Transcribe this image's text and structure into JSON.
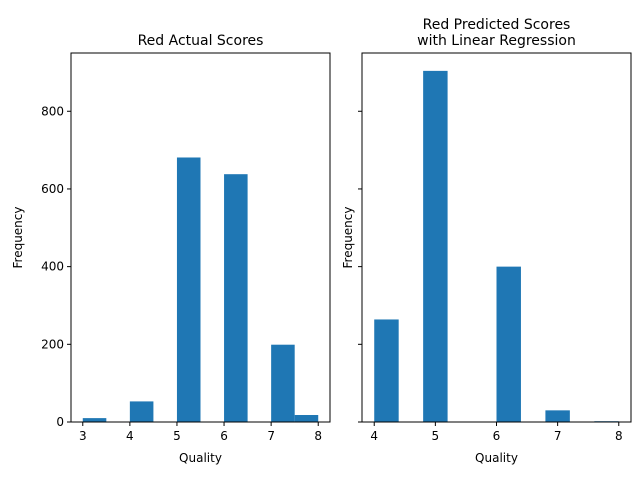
{
  "chart_data": [
    {
      "type": "bar",
      "title": "Red Actual Scores",
      "xlabel": "Quality",
      "ylabel": "Frequency",
      "xlim": [
        2.75,
        8.25
      ],
      "ylim": [
        0,
        950
      ],
      "xticks": [
        3,
        4,
        5,
        6,
        7,
        8
      ],
      "yticks": [
        0,
        200,
        400,
        600,
        800
      ],
      "show_ytick_labels": true,
      "color": "#1f77b4",
      "bins": [
        {
          "x0": 3.0,
          "x1": 3.5,
          "value": 10
        },
        {
          "x0": 3.5,
          "x1": 4.0,
          "value": 0
        },
        {
          "x0": 4.0,
          "x1": 4.5,
          "value": 53
        },
        {
          "x0": 4.5,
          "x1": 5.0,
          "value": 0
        },
        {
          "x0": 5.0,
          "x1": 5.5,
          "value": 681
        },
        {
          "x0": 5.5,
          "x1": 6.0,
          "value": 0
        },
        {
          "x0": 6.0,
          "x1": 6.5,
          "value": 638
        },
        {
          "x0": 6.5,
          "x1": 7.0,
          "value": 0
        },
        {
          "x0": 7.0,
          "x1": 7.5,
          "value": 199
        },
        {
          "x0": 7.5,
          "x1": 8.0,
          "value": 18
        }
      ]
    },
    {
      "type": "bar",
      "title": "Red Predicted Scores\nwith Linear Regression",
      "xlabel": "Quality",
      "ylabel": "Frequency",
      "xlim": [
        3.8,
        8.2
      ],
      "ylim": [
        0,
        950
      ],
      "xticks": [
        4,
        5,
        6,
        7,
        8
      ],
      "yticks": [
        0,
        200,
        400,
        600,
        800
      ],
      "show_ytick_labels": false,
      "color": "#1f77b4",
      "bins": [
        {
          "x0": 4.0,
          "x1": 4.4,
          "value": 264
        },
        {
          "x0": 4.4,
          "x1": 4.8,
          "value": 0
        },
        {
          "x0": 4.8,
          "x1": 5.2,
          "value": 904
        },
        {
          "x0": 5.2,
          "x1": 5.6,
          "value": 0
        },
        {
          "x0": 5.6,
          "x1": 6.0,
          "value": 0
        },
        {
          "x0": 6.0,
          "x1": 6.4,
          "value": 400
        },
        {
          "x0": 6.4,
          "x1": 6.8,
          "value": 0
        },
        {
          "x0": 6.8,
          "x1": 7.2,
          "value": 30
        },
        {
          "x0": 7.2,
          "x1": 7.6,
          "value": 0
        },
        {
          "x0": 7.6,
          "x1": 8.0,
          "value": 2
        }
      ]
    }
  ]
}
